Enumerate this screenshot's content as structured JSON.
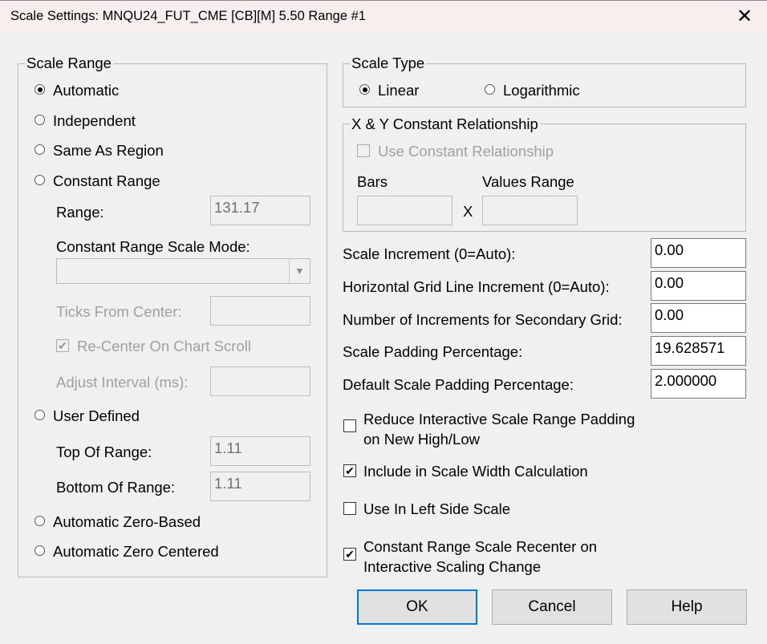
{
  "window": {
    "title": "Scale Settings: MNQU24_FUT_CME [CB][M]  5.50 Range #1",
    "close": "✕"
  },
  "scale_range": {
    "legend": "Scale Range",
    "options": [
      "Automatic",
      "Independent",
      "Same As Region",
      "Constant Range",
      "User Defined",
      "Automatic Zero-Based",
      "Automatic Zero Centered"
    ],
    "selected": "Automatic",
    "range_label": "Range:",
    "range_value": "131.17",
    "mode_label": "Constant Range Scale Mode:",
    "mode_value": "",
    "ticks_label": "Ticks From Center:",
    "ticks_value": "",
    "recenter_label": "Re-Center On Chart Scroll",
    "recenter_checked": true,
    "adjust_label": "Adjust Interval (ms):",
    "adjust_value": "",
    "top_label": "Top Of Range:",
    "top_value": "1.11",
    "bottom_label": "Bottom Of Range:",
    "bottom_value": "1.11"
  },
  "scale_type": {
    "legend": "Scale Type",
    "linear": "Linear",
    "log": "Logarithmic",
    "selected": "Linear"
  },
  "xy": {
    "legend": "X & Y Constant Relationship",
    "use_label": "Use Constant Relationship",
    "use_checked": false,
    "bars_label": "Bars",
    "x_label": "X",
    "values_label": "Values Range",
    "bars_value": "",
    "values_value": ""
  },
  "fields": [
    {
      "label": "Scale Increment (0=Auto):",
      "value": "0.00"
    },
    {
      "label": "Horizontal Grid Line Increment (0=Auto):",
      "value": "0.00"
    },
    {
      "label": "Number of Increments for Secondary Grid:",
      "value": "0.00"
    },
    {
      "label": "Scale Padding Percentage:",
      "value": "19.628571"
    },
    {
      "label": "Default Scale Padding Percentage:",
      "value": "2.000000"
    }
  ],
  "checks": [
    {
      "label1": "Reduce Interactive Scale Range Padding",
      "label2": "on New High/Low",
      "checked": false
    },
    {
      "label1": "Include in Scale Width Calculation",
      "checked": true
    },
    {
      "label1": "Use In Left Side Scale",
      "checked": false
    },
    {
      "label1": "Constant Range Scale Recenter on",
      "label2": "Interactive Scaling Change",
      "checked": true
    }
  ],
  "buttons": {
    "ok": "OK",
    "cancel": "Cancel",
    "help": "Help"
  }
}
